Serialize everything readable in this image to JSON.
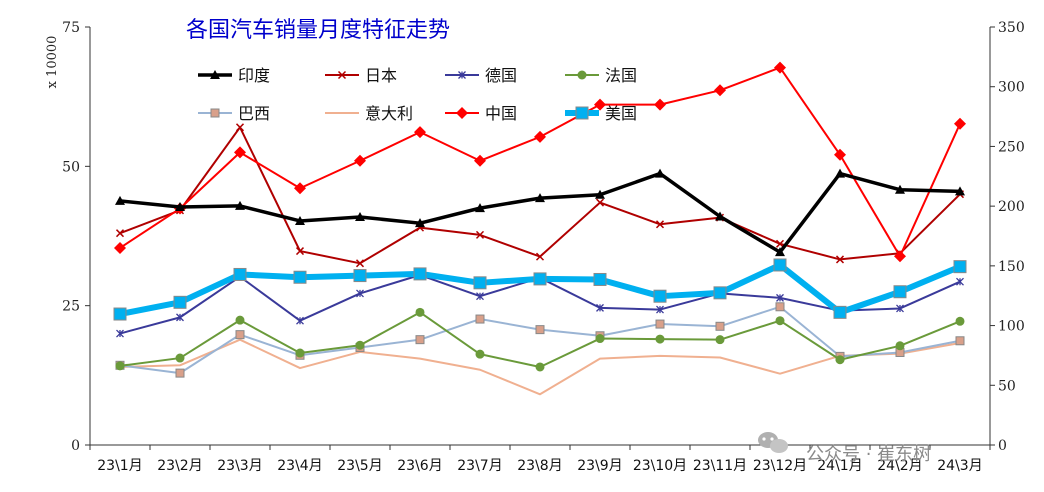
{
  "chart_data": {
    "type": "line",
    "title": "各国汽车销量月度特征走势",
    "ylabel_left": "x 10000",
    "ylim_left": [
      0,
      75
    ],
    "yticks_left": [
      0,
      25,
      50,
      75
    ],
    "ylim_right": [
      0,
      350
    ],
    "yticks_right": [
      0,
      50,
      100,
      150,
      200,
      250,
      300,
      350
    ],
    "categories": [
      "23\\1月",
      "23\\2月",
      "23\\3月",
      "23\\4月",
      "23\\5月",
      "23\\6月",
      "23\\7月",
      "23\\8月",
      "23\\9月",
      "23\\10月",
      "23\\11月",
      "23\\12月",
      "24\\1月",
      "24\\2月",
      "24\\3月"
    ],
    "legend_placement": "top-left inside plot",
    "series": [
      {
        "name": "印度",
        "axis": "left",
        "color": "#000000",
        "marker": "triangle",
        "width": 3.5,
        "values": [
          43.8,
          42.7,
          42.9,
          40.2,
          40.9,
          39.8,
          42.5,
          44.3,
          44.9,
          48.7,
          41.0,
          34.6,
          48.7,
          45.8,
          45.5
        ]
      },
      {
        "name": "日本",
        "axis": "left",
        "color": "#b00000",
        "marker": "x",
        "width": 2,
        "values": [
          38.0,
          42.1,
          57.0,
          34.8,
          32.6,
          39.0,
          37.7,
          33.8,
          43.5,
          39.6,
          40.8,
          36.1,
          33.3,
          34.4,
          45.0
        ]
      },
      {
        "name": "德国",
        "axis": "left",
        "color": "#3a3a9a",
        "marker": "star",
        "width": 2,
        "values": [
          20.0,
          22.9,
          30.2,
          22.3,
          27.2,
          30.5,
          26.7,
          30.0,
          24.6,
          24.3,
          27.2,
          26.4,
          24.1,
          24.5,
          29.3
        ]
      },
      {
        "name": "法国",
        "axis": "left",
        "color": "#6a9a3a",
        "marker": "circle",
        "width": 2,
        "values": [
          14.2,
          15.6,
          22.4,
          16.5,
          17.9,
          23.8,
          16.3,
          14.0,
          19.1,
          19.0,
          18.9,
          22.3,
          15.3,
          17.8,
          22.2
        ]
      },
      {
        "name": "巴西",
        "axis": "left",
        "color": "#9ab4d4",
        "marker": "square",
        "width": 2,
        "values": [
          14.3,
          12.9,
          19.8,
          16.1,
          17.5,
          18.9,
          22.6,
          20.7,
          19.6,
          21.7,
          21.3,
          24.8,
          15.9,
          16.6,
          18.7
        ]
      },
      {
        "name": "意大利",
        "axis": "left",
        "color": "#f0b090",
        "marker": "none",
        "width": 2,
        "values": [
          14.0,
          14.3,
          18.9,
          13.8,
          16.7,
          15.5,
          13.5,
          9.1,
          15.5,
          16.0,
          15.7,
          12.8,
          16.0,
          16.4,
          18.3
        ]
      },
      {
        "name": "中国",
        "axis": "right",
        "color": "#ff0000",
        "marker": "diamond",
        "width": 2,
        "values": [
          165,
          198,
          245,
          215,
          238,
          262,
          238,
          258,
          285,
          285,
          297,
          316,
          243,
          158,
          269
        ]
      },
      {
        "name": "美国",
        "axis": "left",
        "color": "#00b0f0",
        "marker": "square",
        "width": 6,
        "values": [
          23.5,
          25.6,
          30.6,
          30.1,
          30.4,
          30.7,
          29.1,
          29.8,
          29.7,
          26.7,
          27.3,
          32.3,
          23.8,
          27.5,
          32.0
        ]
      }
    ]
  },
  "watermark": {
    "text": "公众号 · 崔东树"
  }
}
